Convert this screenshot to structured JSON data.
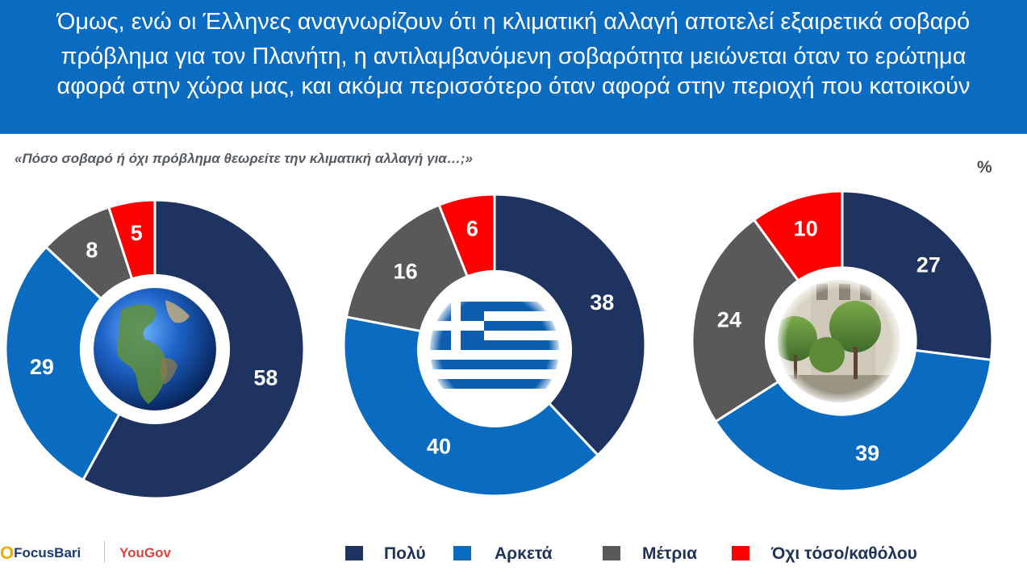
{
  "header": {
    "lines": [
      "Όμως, ενώ οι Έλληνες αναγνωρίζουν ότι η κλιματική αλλαγή αποτελεί εξαιρετικά σοβαρό",
      "πρόβλημα για τον Πλανήτη, η αντιλαμβανόμενη σοβαρότητα μειώνεται όταν το ερώτημα",
      "αφορά στην χώρα μας, και ακόμα περισσότερο όταν αφορά στην περιοχή που κατοικούν"
    ]
  },
  "question": "«Πόσο σοβαρό ή όχι πρόβλημα θεωρείτε την κλιματική αλλαγή για…;»",
  "unit": "%",
  "logos": {
    "focus_o": "O",
    "focus_rest": "FocusBari",
    "yougov": "YouGov"
  },
  "colors": {
    "header_bg": "#0a6cc0",
    "poly": "#1e335f",
    "arketa": "#0a6cc0",
    "metria": "#595959",
    "oxi": "#ff0000"
  },
  "chart_data": {
    "type": "donut",
    "title": "«Πόσο σοβαρό ή όχι πρόβλημα θεωρείτε την κλιματική αλλαγή για…;»",
    "unit": "%",
    "categories": [
      "Πολύ",
      "Αρκετά",
      "Μέτρια",
      "Όχι τόσο/καθόλου"
    ],
    "charts": [
      {
        "subject": "Planet",
        "image": "earth-globe",
        "values": [
          58,
          29,
          8,
          5
        ]
      },
      {
        "subject": "Greece",
        "image": "greek-flag",
        "values": [
          38,
          40,
          16,
          6
        ]
      },
      {
        "subject": "Local area",
        "image": "neighborhood-photo",
        "values": [
          27,
          39,
          24,
          10
        ]
      }
    ],
    "legend": [
      {
        "label": "Πολύ",
        "color": "#1e335f"
      },
      {
        "label": "Αρκετά",
        "color": "#0a6cc0"
      },
      {
        "label": "Μέτρια",
        "color": "#595959"
      },
      {
        "label": "Όχι τόσο/καθόλου",
        "color": "#ff0000"
      }
    ],
    "legend_position": "bottom"
  }
}
